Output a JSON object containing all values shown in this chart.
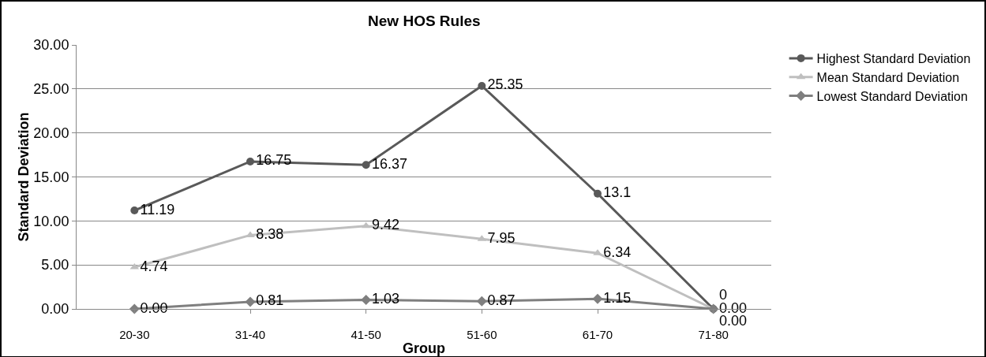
{
  "chart_data": {
    "type": "line",
    "title": "New HOS Rules",
    "xlabel": "Group",
    "ylabel": "Standard Deviation",
    "categories": [
      "20-30",
      "31-40",
      "41-50",
      "51-60",
      "61-70",
      "71-80"
    ],
    "series": [
      {
        "name": "Highest Standard Deviation",
        "color": "#595959",
        "marker": "circle",
        "values": [
          11.19,
          16.75,
          16.37,
          25.35,
          13.1,
          0
        ],
        "value_labels": [
          "11.19",
          "16.75",
          "16.37",
          "25.35",
          "13.1",
          "0"
        ]
      },
      {
        "name": "Mean Standard Deviation",
        "color": "#bfbfbf",
        "marker": "triangle",
        "values": [
          4.74,
          8.38,
          9.42,
          7.95,
          6.34,
          0
        ],
        "value_labels": [
          "4.74",
          "8.38",
          "9.42",
          "7.95",
          "6.34",
          "0.00"
        ]
      },
      {
        "name": "Lowest Standard Deviation",
        "color": "#7f7f7f",
        "marker": "diamond",
        "values": [
          0,
          0.81,
          1.03,
          0.87,
          1.15,
          0
        ],
        "value_labels": [
          "0.00",
          "0.81",
          "1.03",
          "0.87",
          "1.15",
          "0.00"
        ]
      }
    ],
    "ylim": [
      0,
      30
    ],
    "yticks": [
      {
        "value": 0,
        "label": "0.00"
      },
      {
        "value": 5,
        "label": "5.00"
      },
      {
        "value": 10,
        "label": "10.00"
      },
      {
        "value": 15,
        "label": "15.00"
      },
      {
        "value": 20,
        "label": "20.00"
      },
      {
        "value": 25,
        "label": "25.00"
      },
      {
        "value": 30,
        "label": "30.00"
      }
    ],
    "grid": "y",
    "legend": "right",
    "line_style": "solid"
  }
}
